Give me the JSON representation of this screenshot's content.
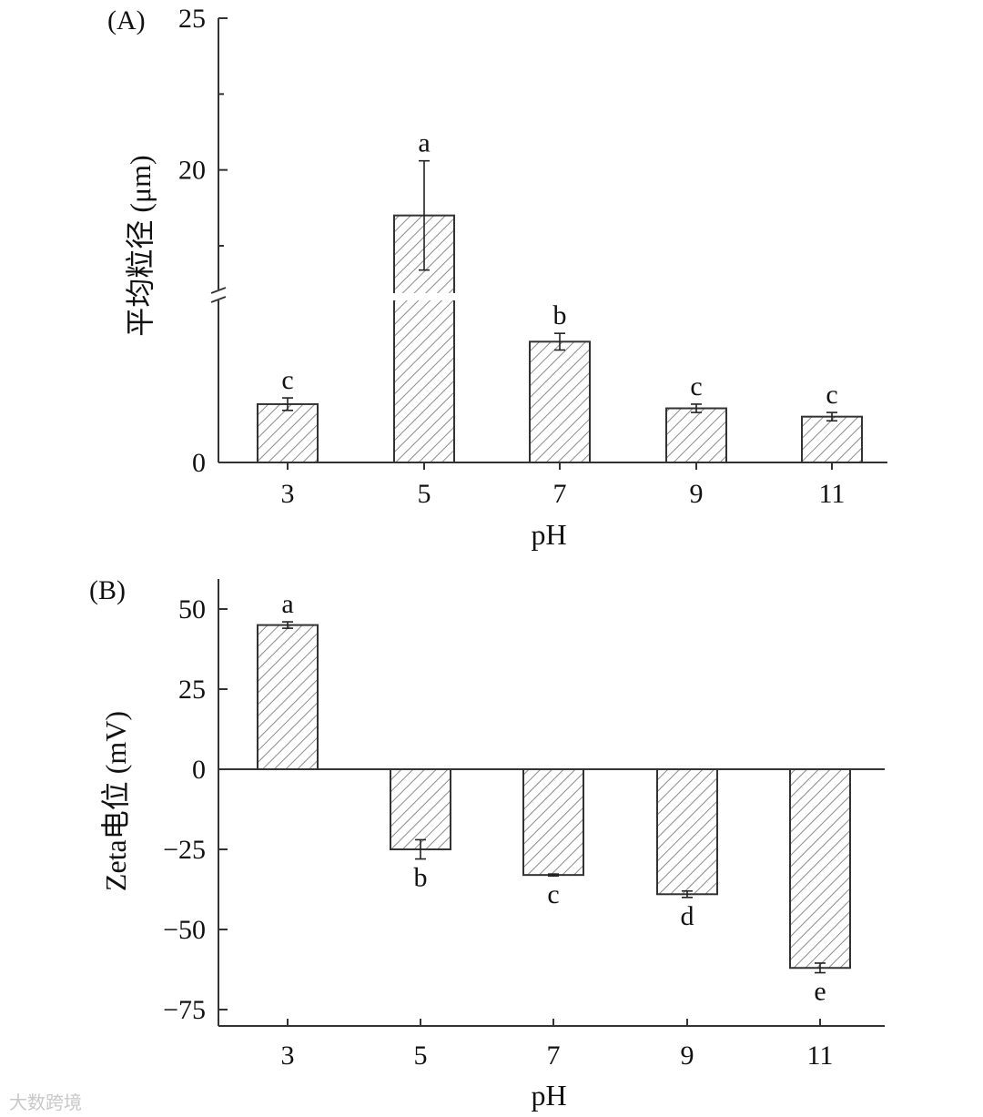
{
  "chart_data": [
    {
      "panel_label": "(A)",
      "type": "bar",
      "categories": [
        "3",
        "5",
        "7",
        "9",
        "11"
      ],
      "values": [
        1.4,
        18.5,
        2.9,
        1.3,
        1.1
      ],
      "errors": [
        0.15,
        1.8,
        0.2,
        0.1,
        0.1
      ],
      "significance": [
        "c",
        "a",
        "b",
        "c",
        "c"
      ],
      "xlabel": "pH",
      "ylabel": "平均粒径 (μm)",
      "yticks": [
        "0",
        "20",
        "25"
      ],
      "ylim": [
        0,
        25
      ],
      "axis_break": true,
      "fill": "diagonal-hatch"
    },
    {
      "panel_label": "(B)",
      "type": "bar",
      "categories": [
        "3",
        "5",
        "7",
        "9",
        "11"
      ],
      "values": [
        45,
        -25,
        -33,
        -39,
        -62
      ],
      "errors": [
        1,
        3,
        0.3,
        1,
        1.5
      ],
      "significance": [
        "a",
        "b",
        "c",
        "d",
        "e"
      ],
      "xlabel": "pH",
      "ylabel": "Zeta电位 (mV)",
      "yticks": [
        "50",
        "25",
        "0",
        "−25",
        "−50",
        "−75"
      ],
      "ylim": [
        -80,
        60
      ],
      "fill": "diagonal-hatch"
    }
  ],
  "watermark": "大数跨境",
  "style": {
    "bar_fill": "#ffffff",
    "hatch_color": "#8a8a8a",
    "axis_color": "#333333"
  }
}
